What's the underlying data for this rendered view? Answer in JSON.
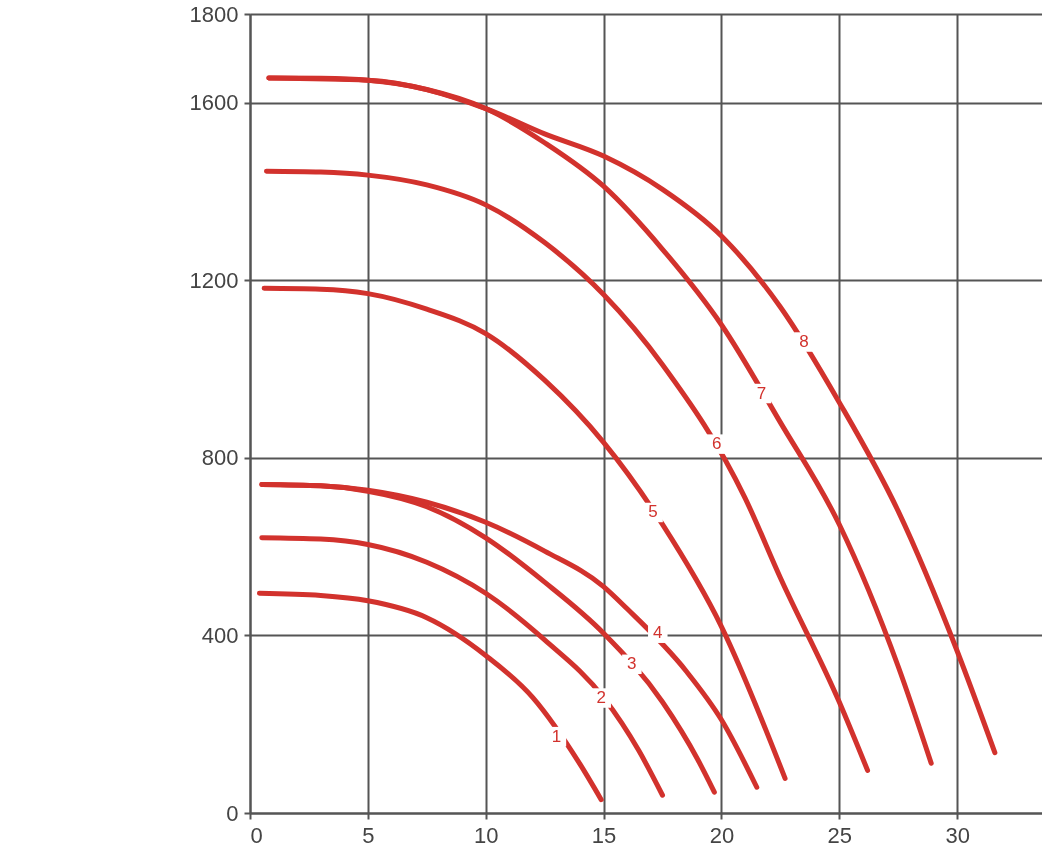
{
  "chart_data": {
    "type": "line",
    "xlim": [
      0,
      33.6
    ],
    "ylim": [
      0,
      1800
    ],
    "xticks": [
      0,
      5,
      10,
      15,
      20,
      25,
      30
    ],
    "yticks": [
      0,
      400,
      800,
      1200,
      1600,
      1800
    ],
    "grid": true,
    "marker": "none",
    "line_style": "solid",
    "series": [
      {
        "color": "#d2322d",
        "x": [
          0.4,
          3,
          5,
          7.5,
          10,
          12,
          14,
          14.9
        ],
        "values": [
          495,
          490,
          478,
          440,
          355,
          260,
          110,
          30
        ]
      },
      {
        "color": "#d2322d",
        "x": [
          0.5,
          3,
          5,
          7.5,
          10,
          12.5,
          15,
          16.5,
          17.5
        ],
        "values": [
          620,
          617,
          605,
          565,
          495,
          390,
          260,
          140,
          40
        ]
      },
      {
        "color": "#d2322d",
        "x": [
          0.5,
          3,
          5,
          7.5,
          10,
          12.5,
          15,
          17.5,
          19,
          19.7
        ],
        "values": [
          740,
          737,
          725,
          690,
          620,
          520,
          405,
          250,
          120,
          47
        ]
      },
      {
        "color": "#d2322d",
        "x": [
          0.5,
          3,
          5,
          7.5,
          10,
          12.5,
          15,
          16,
          18.5,
          20,
          21.5
        ],
        "values": [
          740,
          737,
          727,
          700,
          655,
          590,
          510,
          460,
          320,
          210,
          58
        ]
      },
      {
        "color": "#d2322d",
        "x": [
          0.6,
          3,
          5,
          7.5,
          10,
          12.5,
          15,
          17.5,
          20,
          22.7
        ],
        "values": [
          1182,
          1180,
          1170,
          1135,
          1080,
          975,
          835,
          650,
          420,
          78
        ]
      },
      {
        "color": "#d2322d",
        "x": [
          0.7,
          3,
          5,
          7.5,
          10,
          12.5,
          15,
          17.5,
          21,
          22.5,
          25,
          26.2
        ],
        "values": [
          1446,
          1444,
          1437,
          1415,
          1370,
          1285,
          1168,
          1010,
          710,
          530,
          250,
          96
        ]
      },
      {
        "color": "#d2322d",
        "x": [
          0.8,
          3,
          5,
          7.5,
          10,
          12.5,
          15,
          17.5,
          20,
          22.5,
          25,
          27.5,
          28.9
        ],
        "values": [
          1656,
          1655,
          1651,
          1630,
          1587,
          1510,
          1412,
          1270,
          1100,
          880,
          650,
          330,
          112
        ]
      },
      {
        "color": "#d2322d",
        "x": [
          0.8,
          5,
          10,
          12.5,
          15,
          17.5,
          20,
          22.5,
          25,
          27.5,
          30,
          31.6
        ],
        "values": [
          1656,
          1651,
          1587,
          1530,
          1480,
          1405,
          1300,
          1140,
          925,
          680,
          365,
          136
        ]
      }
    ],
    "annotations": [
      {
        "text": "1",
        "x": 13,
        "y": 172
      },
      {
        "text": "2",
        "x": 14.9,
        "y": 259
      },
      {
        "text": "3",
        "x": 16.2,
        "y": 335
      },
      {
        "text": "4",
        "x": 17.3,
        "y": 405
      },
      {
        "text": "5",
        "x": 17.1,
        "y": 677
      },
      {
        "text": "6",
        "x": 19.8,
        "y": 831
      },
      {
        "text": "7",
        "x": 21.7,
        "y": 945
      },
      {
        "text": "8",
        "x": 23.5,
        "y": 1061
      }
    ]
  }
}
